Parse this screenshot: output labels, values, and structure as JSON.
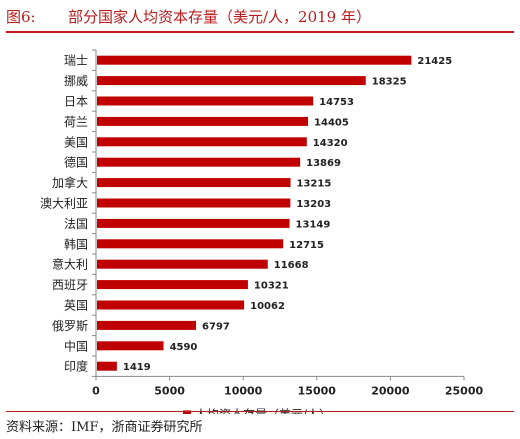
{
  "figure": {
    "number": "图6:",
    "title": "部分国家人均资本存量（美元/人，2019 年）"
  },
  "source": "资料来源：IMF，浙商证券研究所",
  "colors": {
    "bar": "#c00000",
    "accent": "#b81c1c"
  },
  "chart_data": {
    "type": "bar",
    "orientation": "horizontal",
    "categories": [
      "瑞士",
      "挪威",
      "日本",
      "荷兰",
      "美国",
      "德国",
      "加拿大",
      "澳大利亚",
      "法国",
      "韩国",
      "意大利",
      "西班牙",
      "英国",
      "俄罗斯",
      "中国",
      "印度"
    ],
    "series": [
      {
        "name": "人均资本存量（美元/人）",
        "values": [
          21425,
          18325,
          14753,
          14405,
          14320,
          13869,
          13215,
          13203,
          13149,
          12715,
          11668,
          10321,
          10062,
          6797,
          4590,
          1419
        ]
      }
    ],
    "x_ticks": [
      "0",
      "5000",
      "10000",
      "15000",
      "20000",
      "25000"
    ],
    "xlim": [
      0,
      25000
    ],
    "grid": false,
    "legend": "bottom",
    "data_labels": true
  }
}
